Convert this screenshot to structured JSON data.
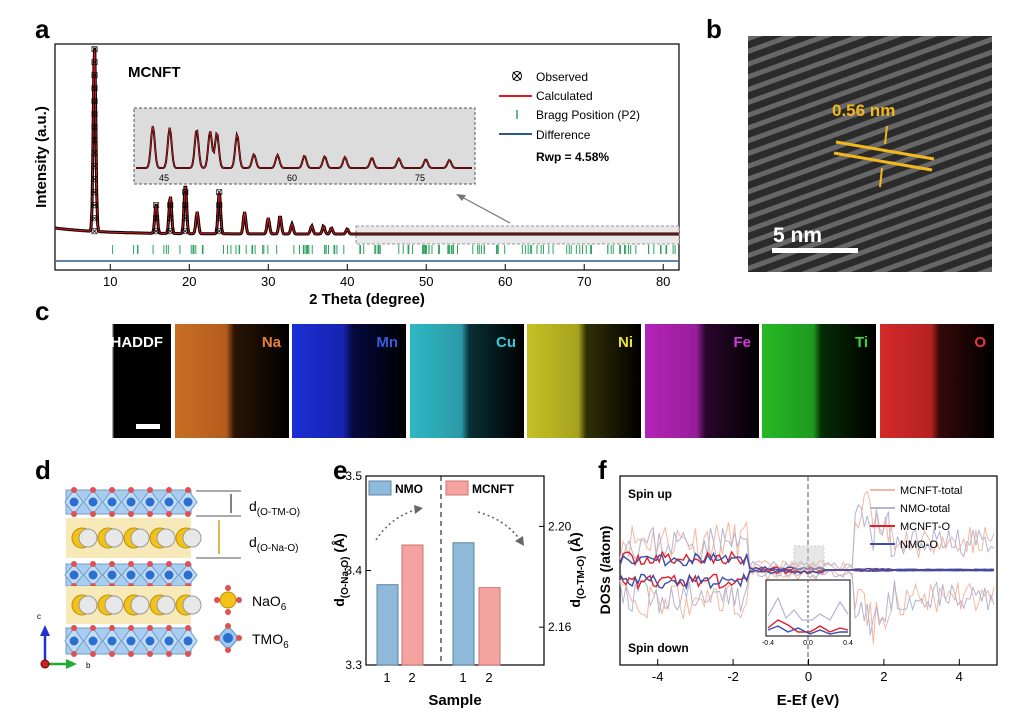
{
  "panels": {
    "a": "a",
    "b": "b",
    "c": "c",
    "d": "d",
    "e": "e",
    "f": "f"
  },
  "panel_a": {
    "sample": "MCNFT",
    "xlabel": "2 Theta (degree)",
    "ylabel": "Intensity (a.u.)",
    "xticks": [
      "10",
      "20",
      "30",
      "40",
      "50",
      "60",
      "70",
      "80"
    ],
    "legend": [
      "Observed",
      "Calculated",
      "Bragg Position (P2)",
      "Difference"
    ],
    "rwp": "Rwp = 4.58%",
    "inset_ticks": [
      "45",
      "60",
      "75"
    ],
    "colors": {
      "calculated": "#e41a1c",
      "bragg": "#2ca25f",
      "difference": "#2b5a8c"
    }
  },
  "panel_b": {
    "spacing": "0.56 nm",
    "scale": "5 nm"
  },
  "panel_c": {
    "maps": [
      {
        "name": "HADDF",
        "color": "#ffffff"
      },
      {
        "name": "Na",
        "color": "#e8823a"
      },
      {
        "name": "Mn",
        "color": "#3a5bd9"
      },
      {
        "name": "Cu",
        "color": "#3cc8d8"
      },
      {
        "name": "Ni",
        "color": "#e8e23a"
      },
      {
        "name": "Fe",
        "color": "#d43ad8"
      },
      {
        "name": "Ti",
        "color": "#3ad83a"
      },
      {
        "name": "O",
        "color": "#e83a3a"
      }
    ]
  },
  "panel_d": {
    "d_tmo": "d",
    "d_tmo_sub": "(O-TM-O)",
    "d_nao": "d",
    "d_nao_sub": "(O-Na-O)",
    "nao6": "NaO",
    "nao6_sub": "6",
    "tmo6": "TMO",
    "tmo6_sub": "6",
    "axes": [
      "c",
      "b"
    ]
  },
  "chart_data": [
    {
      "type": "bar",
      "panel": "e",
      "xlabel": "Sample",
      "ylabel_left": "d(O-Na-O) (Å)",
      "ylabel_right": "d(O-TM-O) (Å)",
      "left_ylim": [
        3.3,
        3.5
      ],
      "left_ticks": [
        "3.3",
        "3.4",
        "3.5"
      ],
      "right_ylim": [
        2.145,
        2.22
      ],
      "right_ticks": [
        "2.16",
        "2.20"
      ],
      "groups": [
        {
          "name": "NMO",
          "color": "#8fb9d9",
          "axis": "left",
          "categories": [
            "1"
          ],
          "values": [
            3.385
          ]
        },
        {
          "name": "MCNFT",
          "color": "#f5a3a0",
          "axis": "left",
          "categories": [
            "2"
          ],
          "values": [
            3.427
          ]
        },
        {
          "name": "NMO",
          "color": "#8fb9d9",
          "axis": "right",
          "categories": [
            "1"
          ],
          "values": [
            2.1935
          ]
        },
        {
          "name": "MCNFT",
          "color": "#f5a3a0",
          "axis": "right",
          "categories": [
            "2"
          ],
          "values": [
            2.1757
          ]
        }
      ],
      "categories": [
        "1",
        "2",
        "1",
        "2"
      ],
      "legend": [
        "NMO",
        "MCNFT"
      ]
    },
    {
      "type": "line",
      "panel": "f",
      "xlabel": "E-Ef (eV)",
      "ylabel": "DOSs (/atom)",
      "xlim": [
        -5,
        5
      ],
      "xticks": [
        "-4",
        "-2",
        "0",
        "2",
        "4"
      ],
      "annotations": [
        "Spin up",
        "Spin down"
      ],
      "inset_xticks": [
        "-0.4",
        "0.0",
        "0.4"
      ],
      "series": [
        {
          "name": "MCNFT-total",
          "color": "#f2b8a0"
        },
        {
          "name": "NMO-total",
          "color": "#b4b4d2"
        },
        {
          "name": "MCNFT-O",
          "color": "#e0202a"
        },
        {
          "name": "NMO-O",
          "color": "#3a4ea8"
        }
      ]
    }
  ]
}
